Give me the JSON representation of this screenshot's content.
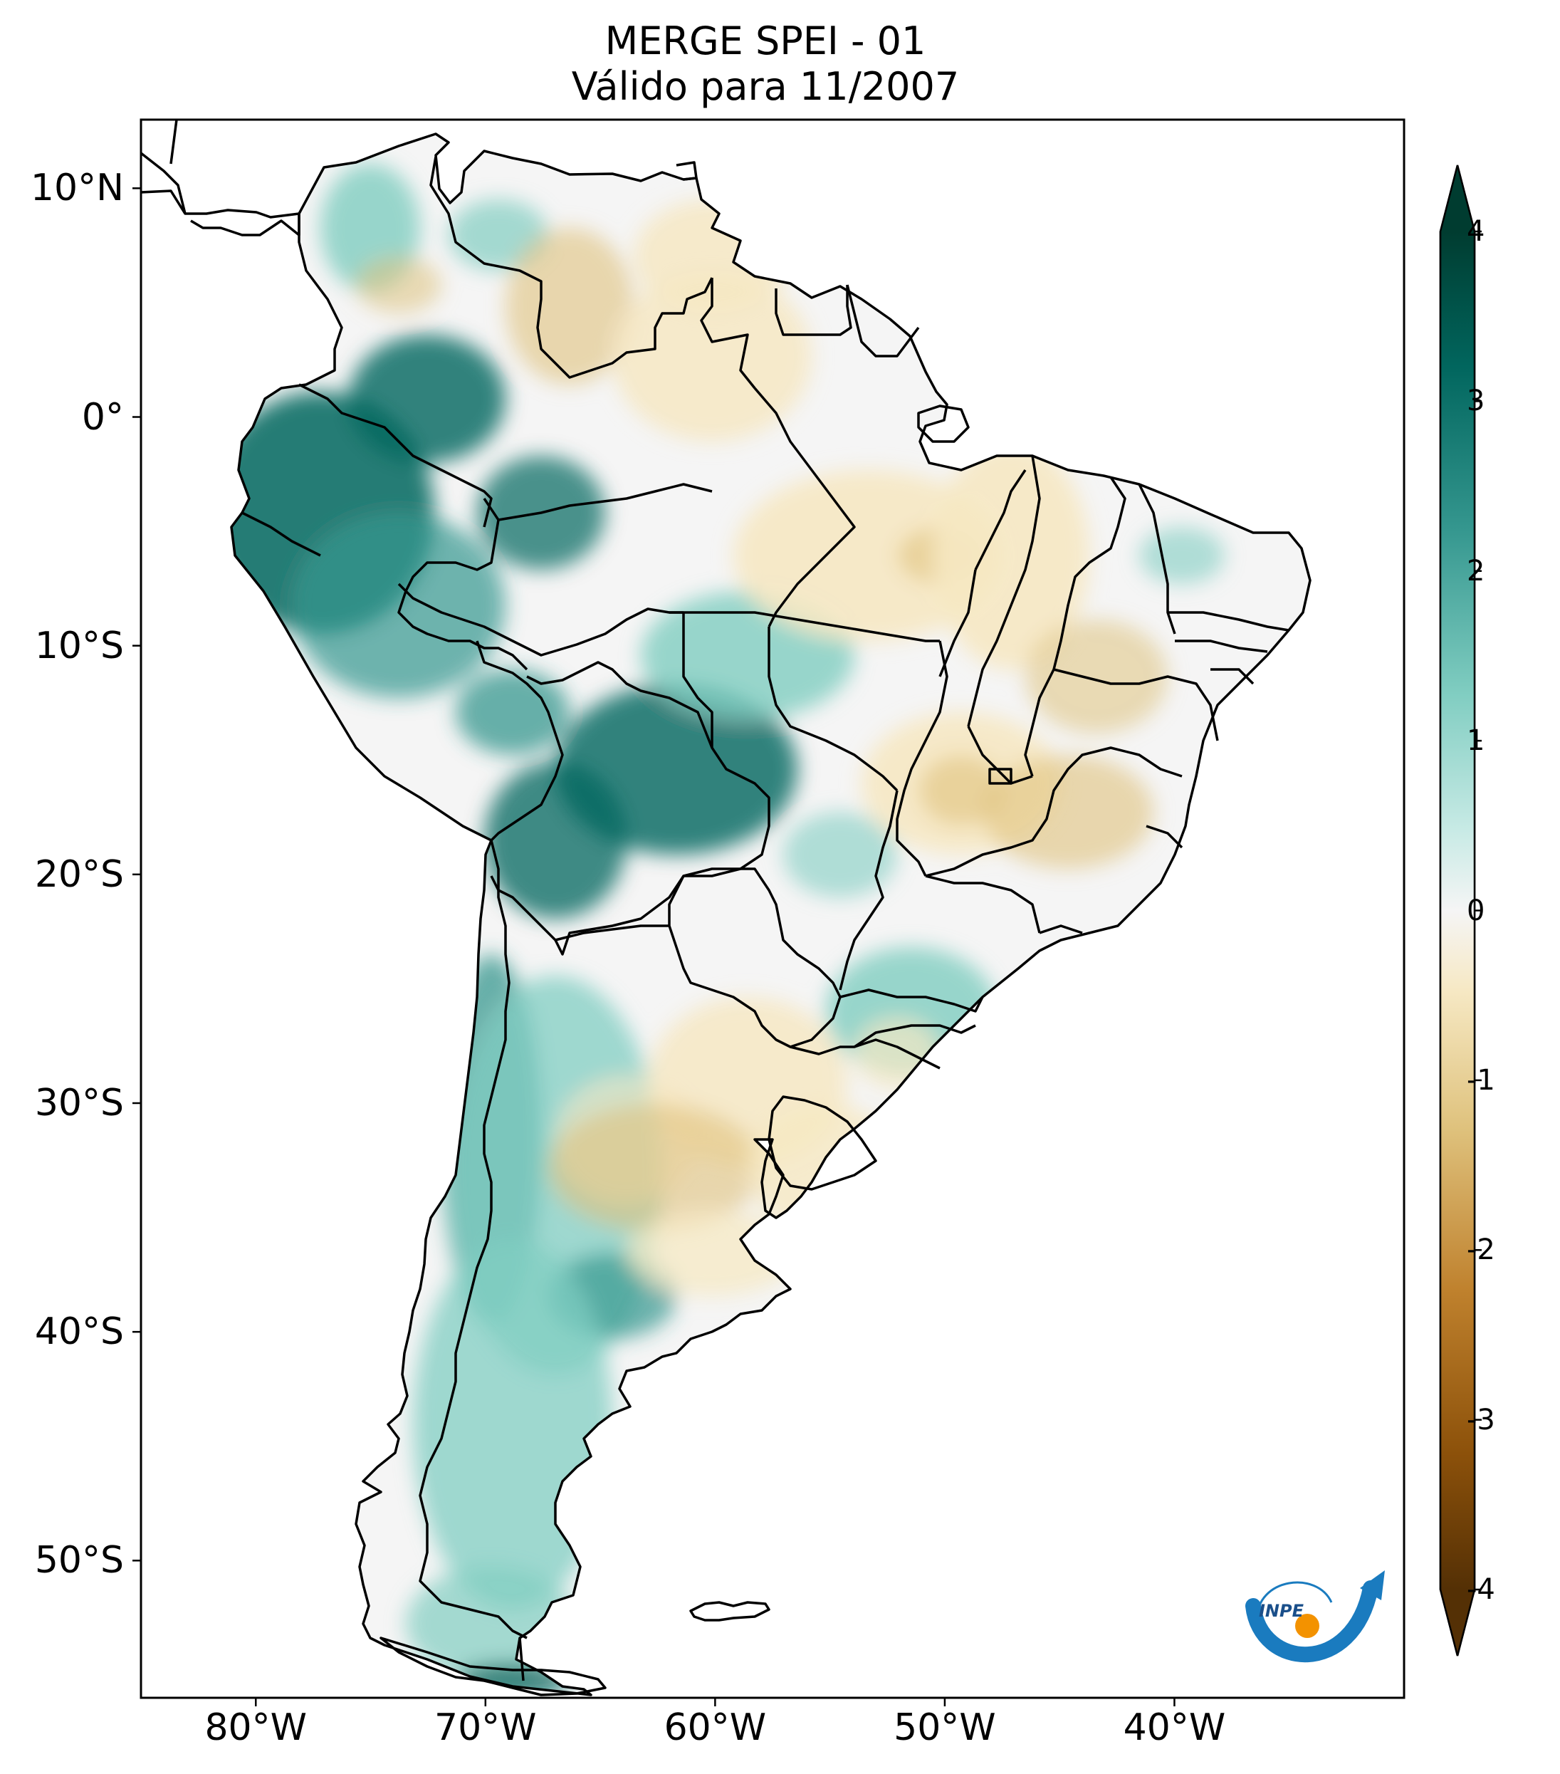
{
  "title": {
    "line1": "MERGE   SPEI - 01",
    "line2": "Válido para 11/2007"
  },
  "map": {
    "lon_range": [
      -85,
      -30
    ],
    "lat_range": [
      -56,
      13
    ],
    "lat_ticks": [
      {
        "value": 10,
        "label": "10°N"
      },
      {
        "value": 0,
        "label": "0°"
      },
      {
        "value": -10,
        "label": "10°S"
      },
      {
        "value": -20,
        "label": "20°S"
      },
      {
        "value": -30,
        "label": "30°S"
      },
      {
        "value": -40,
        "label": "40°S"
      },
      {
        "value": -50,
        "label": "50°S"
      }
    ],
    "lon_ticks": [
      {
        "value": -80,
        "label": "80°W"
      },
      {
        "value": -70,
        "label": "70°W"
      },
      {
        "value": -60,
        "label": "60°W"
      },
      {
        "value": -50,
        "label": "50°W"
      },
      {
        "value": -40,
        "label": "40°W"
      }
    ]
  },
  "colorbar": {
    "range": [
      -4,
      4
    ],
    "ticks": [
      {
        "value": 4,
        "label": "4"
      },
      {
        "value": 3,
        "label": "3"
      },
      {
        "value": 2,
        "label": "2"
      },
      {
        "value": 1,
        "label": "1"
      },
      {
        "value": 0,
        "label": "0"
      },
      {
        "value": -1,
        "label": "-1"
      },
      {
        "value": -2,
        "label": "-2"
      },
      {
        "value": -3,
        "label": "-3"
      },
      {
        "value": -4,
        "label": "-4"
      }
    ],
    "colors": {
      "wet_extreme": "#003c30",
      "wet_strong": "#01665e",
      "wet_moderate": "#35978f",
      "wet_mild": "#80cdc1",
      "wet_light": "#c7eae5",
      "neutral": "#f5f5f5",
      "dry_light": "#f6e8c3",
      "dry_mild": "#dfc27d",
      "dry_moderate": "#bf812d",
      "dry_strong": "#8c510a",
      "dry_extreme": "#543005"
    }
  },
  "logo": {
    "text": "INPE",
    "colors": {
      "arc": "#1a7bbf",
      "dot": "#f39200"
    }
  }
}
